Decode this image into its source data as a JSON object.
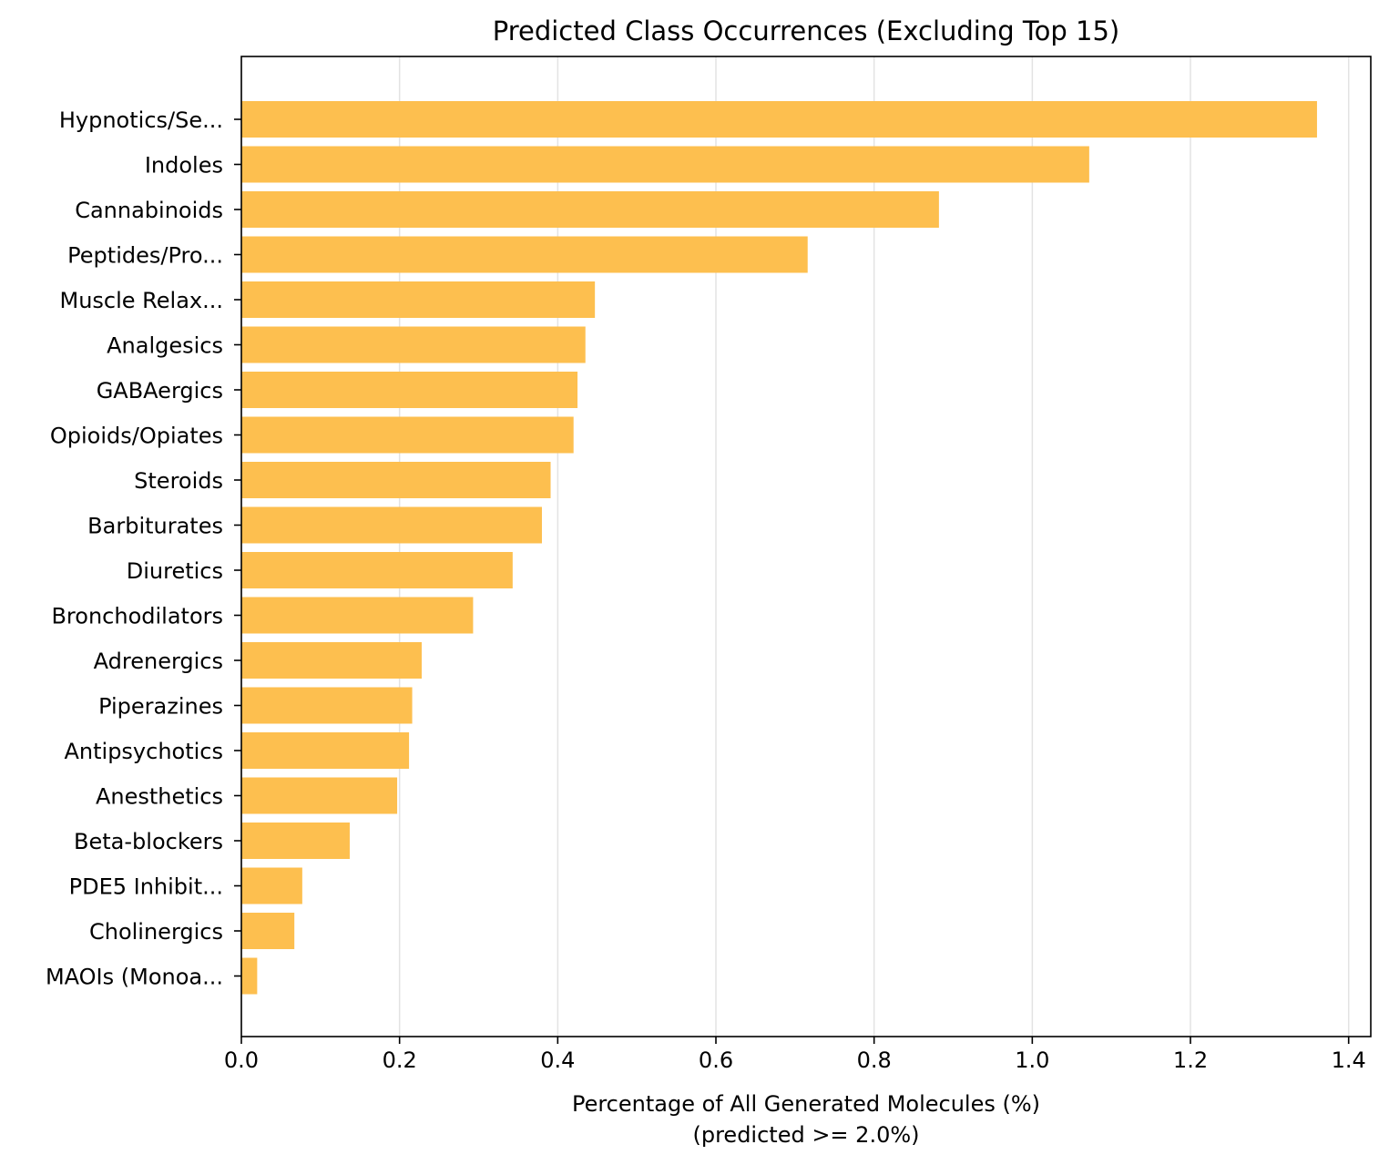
{
  "chart_data": {
    "type": "bar",
    "orientation": "horizontal",
    "title": "Predicted Class Occurrences (Excluding Top 15)",
    "xlabel_line1": "Percentage of All Generated Molecules (%)",
    "xlabel_line2": "(predicted >= 2.0%)",
    "ylabel": "",
    "xlim": [
      0,
      1.428
    ],
    "xticks": [
      0.0,
      0.2,
      0.4,
      0.6,
      0.8,
      1.0,
      1.2,
      1.4
    ],
    "xtick_labels": [
      "0.0",
      "0.2",
      "0.4",
      "0.6",
      "0.8",
      "1.0",
      "1.2",
      "1.4"
    ],
    "grid": "x",
    "bar_color": "#fdbf4f",
    "categories": [
      "Hypnotics/Se...",
      "Indoles",
      "Cannabinoids",
      "Peptides/Pro...",
      "Muscle Relax...",
      "Analgesics",
      "GABAergics",
      "Opioids/Opiates",
      "Steroids",
      "Barbiturates",
      "Diuretics",
      "Bronchodilators",
      "Adrenergics",
      "Piperazines",
      "Antipsychotics",
      "Anesthetics",
      "Beta-blockers",
      "PDE5 Inhibit...",
      "Cholinergics",
      "MAOIs (Monoa..."
    ],
    "values": [
      1.36,
      1.072,
      0.882,
      0.716,
      0.447,
      0.435,
      0.425,
      0.42,
      0.391,
      0.38,
      0.343,
      0.293,
      0.228,
      0.216,
      0.212,
      0.197,
      0.137,
      0.077,
      0.067,
      0.02
    ]
  }
}
